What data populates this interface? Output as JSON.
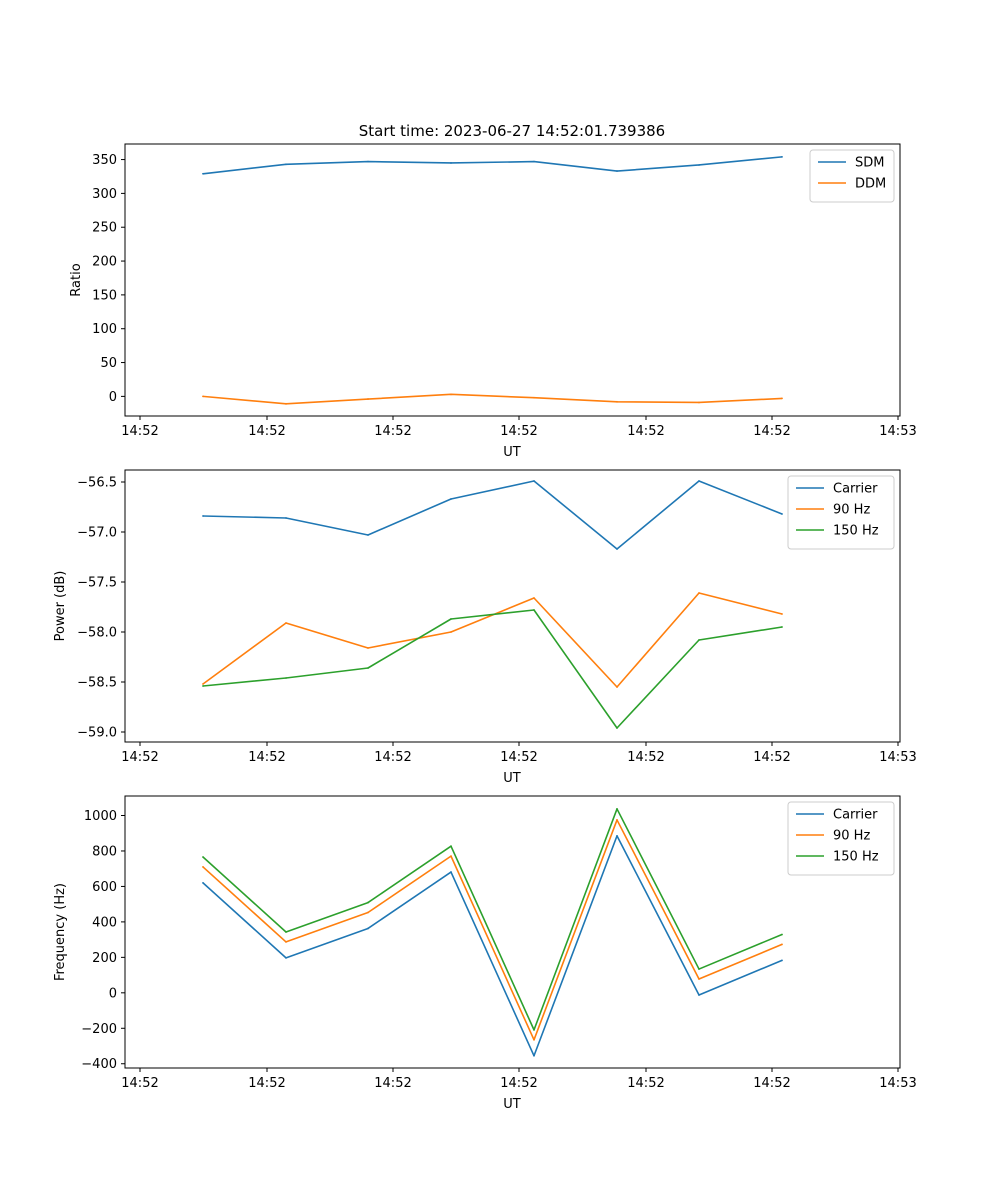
{
  "figure_title": "Start time: 2023-06-27 14:52:01.739386",
  "colors": {
    "blue": "#1f77b4",
    "orange": "#ff7f0e",
    "green": "#2ca02c"
  },
  "chart_data": [
    {
      "type": "line",
      "xlabel": "UT",
      "ylabel": "Ratio",
      "x_tick_labels": [
        "14:52",
        "14:52",
        "14:52",
        "14:52",
        "14:52",
        "14:52",
        "14:52"
      ],
      "x_end_label": "14:53",
      "y_ticks": [
        "350",
        "300",
        "250",
        "200",
        "150",
        "100",
        "50",
        "0"
      ],
      "ylim": [
        -29,
        373
      ],
      "legend": "top-right",
      "series": [
        {
          "name": "SDM",
          "color": "#1f77b4",
          "values": [
            329,
            343,
            347,
            345,
            347,
            333,
            342,
            354
          ]
        },
        {
          "name": "DDM",
          "color": "#ff7f0e",
          "values": [
            0,
            -11,
            -4,
            3,
            -2,
            -8,
            -9,
            -3
          ]
        }
      ]
    },
    {
      "type": "line",
      "xlabel": "UT",
      "ylabel": "Power (dB)",
      "x_tick_labels": [
        "14:52",
        "14:52",
        "14:52",
        "14:52",
        "14:52",
        "14:52",
        "14:52"
      ],
      "x_end_label": "14:53",
      "y_ticks": [
        "−56.5",
        "−57.0",
        "−57.5",
        "−58.0",
        "−58.5",
        "−59.0"
      ],
      "ylim": [
        -59.1,
        -56.38
      ],
      "legend": "top-right",
      "series": [
        {
          "name": "Carrier",
          "color": "#1f77b4",
          "values": [
            -56.84,
            -56.86,
            -57.03,
            -56.67,
            -56.49,
            -57.17,
            -56.49,
            -56.82
          ]
        },
        {
          "name": "90 Hz",
          "color": "#ff7f0e",
          "values": [
            -58.52,
            -57.91,
            -58.16,
            -58.0,
            -57.66,
            -58.55,
            -57.61,
            -57.82
          ]
        },
        {
          "name": "150 Hz",
          "color": "#2ca02c",
          "values": [
            -58.54,
            -58.46,
            -58.36,
            -57.87,
            -57.78,
            -58.96,
            -58.08,
            -57.95
          ]
        }
      ]
    },
    {
      "type": "line",
      "xlabel": "UT",
      "ylabel": "Frequency (Hz)",
      "x_tick_labels": [
        "14:52",
        "14:52",
        "14:52",
        "14:52",
        "14:52",
        "14:52",
        "14:52"
      ],
      "x_end_label": "14:53",
      "y_ticks": [
        "1000",
        "800",
        "600",
        "400",
        "200",
        "0",
        "−200",
        "−400"
      ],
      "ylim": [
        -424,
        1110
      ],
      "legend": "top-right",
      "series": [
        {
          "name": "Carrier",
          "color": "#1f77b4",
          "values": [
            620,
            197,
            363,
            681,
            -355,
            885,
            -12,
            183
          ]
        },
        {
          "name": "90 Hz",
          "color": "#ff7f0e",
          "values": [
            710,
            287,
            453,
            771,
            -265,
            975,
            78,
            273
          ]
        },
        {
          "name": "150 Hz",
          "color": "#2ca02c",
          "values": [
            766,
            343,
            509,
            827,
            -209,
            1037,
            134,
            329
          ]
        }
      ]
    }
  ]
}
